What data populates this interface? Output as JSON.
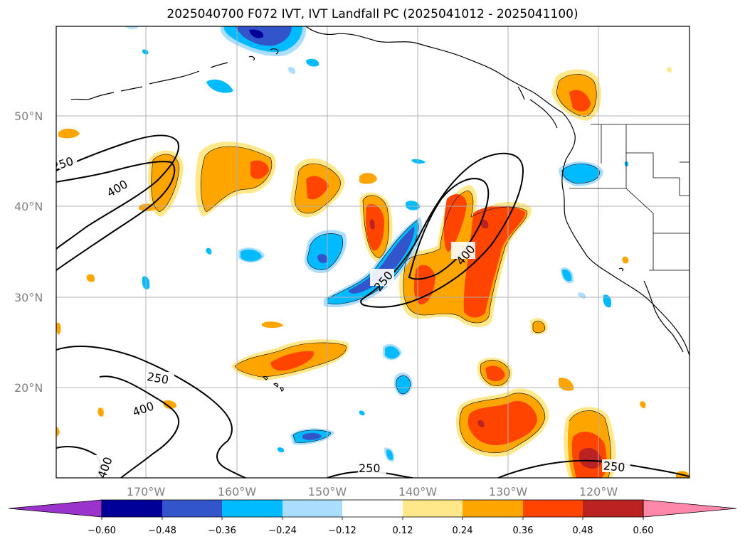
{
  "title": "2025040700 F072 IVT, IVT Landfall PC (2025041012 - 2025041100)",
  "lat_labels": [
    "50°N",
    "40°N",
    "30°N",
    "20°N"
  ],
  "lon_labels": [
    "170°W",
    "160°W",
    "150°W",
    "140°W",
    "130°W",
    "120°W"
  ],
  "contour_levels": [
    "250",
    "400"
  ],
  "colorbar": {
    "ticks": [
      "−0.60",
      "−0.48",
      "−0.36",
      "−0.24",
      "−0.12",
      "0.12",
      "0.24",
      "0.36",
      "0.48",
      "0.60"
    ],
    "colors": [
      "#9933cc",
      "#000099",
      "#3355cc",
      "#00bbff",
      "#aaddff",
      "#ffffff",
      "#ffe88a",
      "#ffa500",
      "#ff4400",
      "#bb2222",
      "#ff88aa"
    ]
  },
  "colors": {
    "neg_strong": "#3355cc",
    "neg_mid": "#00bbff",
    "neg_light": "#aaddff",
    "pos_light": "#ffe88a",
    "pos_mid": "#ffa500",
    "pos_strong": "#ff4400",
    "pos_max": "#bb2222",
    "neg_max": "#000099"
  }
}
